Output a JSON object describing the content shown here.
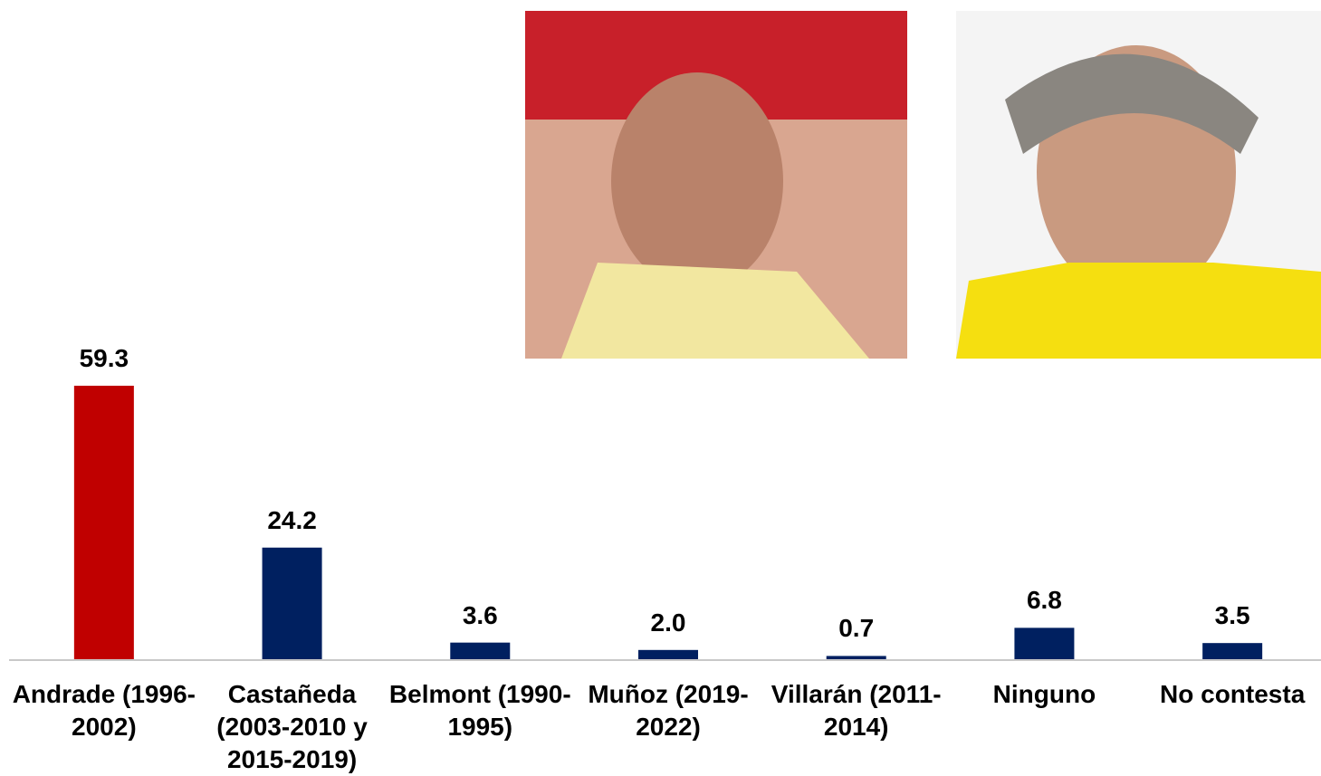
{
  "chart_data": {
    "type": "bar",
    "categories": [
      "Andrade (1996-2002)",
      "Castañeda (2003-2010 y 2015-2019)",
      "Belmont (1990-1995)",
      "Muñoz (2019-2022)",
      "Villarán (2011-2014)",
      "Ninguno",
      "No contesta"
    ],
    "values": [
      59.3,
      24.2,
      3.6,
      2.0,
      0.7,
      6.8,
      3.5
    ],
    "value_labels": [
      "59.3",
      "24.2",
      "3.6",
      "2.0",
      "0.7",
      "6.8",
      "3.5"
    ],
    "colors": [
      "#c00000",
      "#002060",
      "#002060",
      "#002060",
      "#002060",
      "#002060",
      "#002060"
    ]
  }
}
